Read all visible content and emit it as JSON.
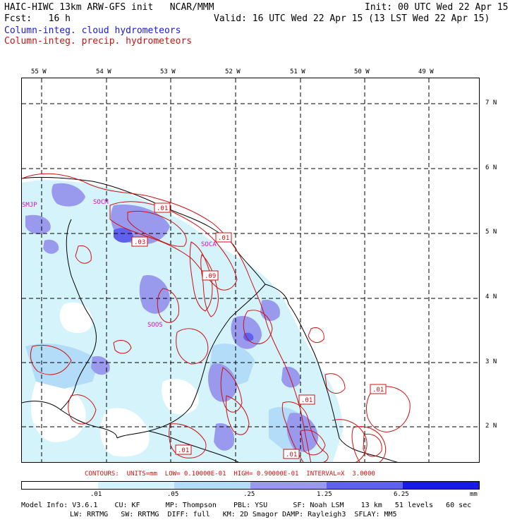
{
  "header": {
    "title_left": "HAIC-HIWC 13km ARW-GFS init   NCAR/MMM",
    "init": "Init: 00 UTC Wed 22 Apr 15",
    "fcst": "Fcst:   16 h",
    "valid": "Valid: 16 UTC Wed 22 Apr 15 (13 LST Wed 22 Apr 15)",
    "field1": "Column-integ. cloud hydrometeors",
    "field2": "Column-integ. precip. hydrometeors"
  },
  "colors": {
    "field1": "#1a1ad0",
    "field2": "#d01010",
    "shades": [
      "#ffffff",
      "#d4f3fb",
      "#b2dcf7",
      "#9999ee",
      "#6060ee",
      "#1a1ae6"
    ]
  },
  "map": {
    "lon_labels": [
      "55 W",
      "54 W",
      "53 W",
      "52 W",
      "51 W",
      "50 W",
      "49 W"
    ],
    "lat_labels": [
      "7 N",
      "6 N",
      "5 N",
      "4 N",
      "3 N",
      "2 N"
    ],
    "stations": [
      "SMJP",
      "SOCM",
      "SOCA",
      "SOOS"
    ],
    "contour_labels": [
      ".01",
      ".01",
      ".03",
      ".09",
      ".01",
      ".01",
      ".01",
      ".01"
    ]
  },
  "legend": {
    "contours_line": "CONTOURS:  UNITS=mm  LOW= 0.10000E-01  HIGH= 0.90000E-01  INTERVAL=X  3.0000",
    "ticks": [
      ".01",
      ".05",
      ".25",
      "1.25",
      "6.25"
    ],
    "units": "mm"
  },
  "model_info": {
    "line1": "Model Info: V3.6.1    CU: KF      MP: Thompson    PBL: YSU      SF: Noah LSM    13 km   51 levels   60 sec",
    "line2": "LW: RRTMG   SW: RRTMG  DIFF: full   KM: 2D Smagor DAMP: Rayleigh3  SFLAY: MM5"
  }
}
